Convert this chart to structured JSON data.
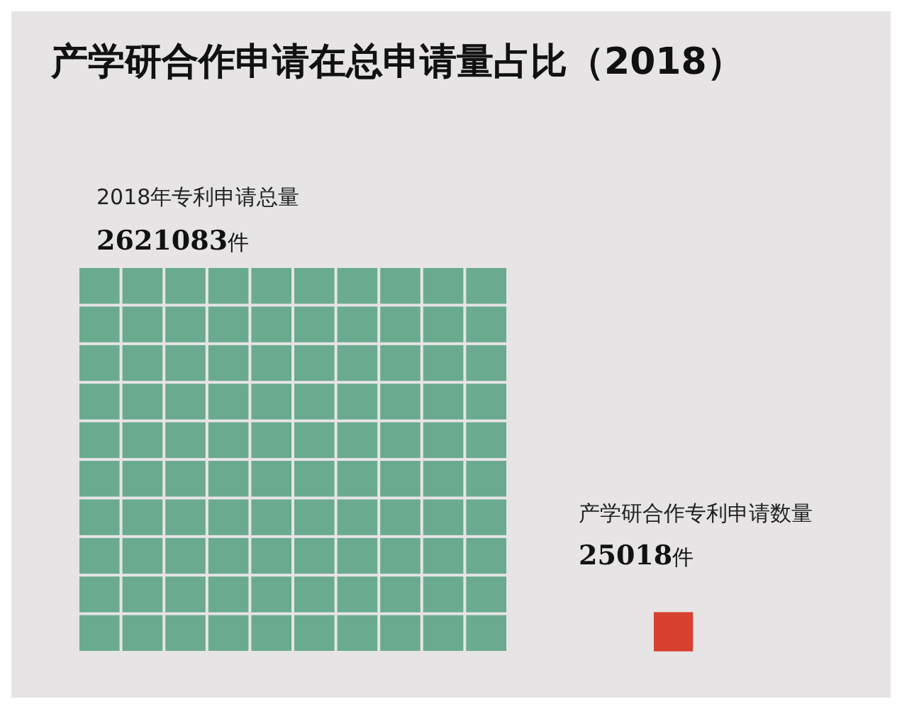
{
  "chart_data": {
    "type": "other",
    "title": "产学研合作申请在总申请量占比（2018）",
    "categories": [
      "2018年专利申请总量",
      "产学研合作专利申请数量"
    ],
    "values": [
      2621083,
      25018
    ],
    "value_labels": [
      "2621083件",
      "25018件"
    ],
    "colors": [
      "#6aab8f",
      "#d7412f"
    ]
  }
}
